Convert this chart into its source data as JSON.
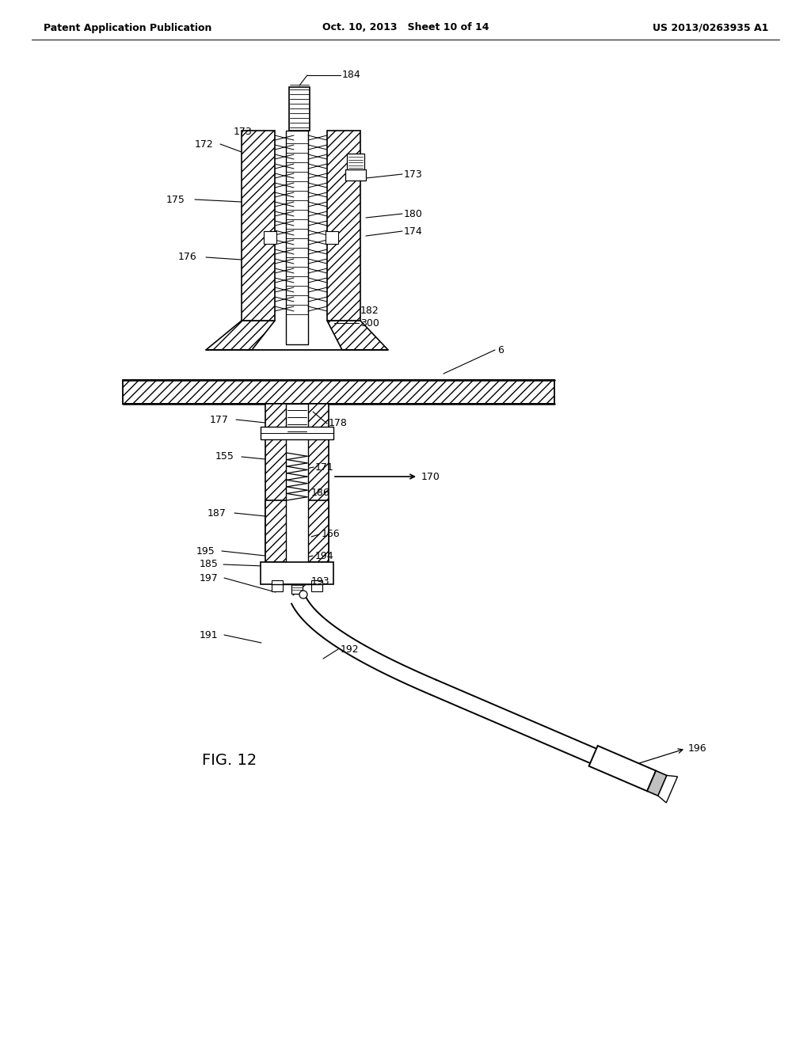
{
  "header_left": "Patent Application Publication",
  "header_center": "Oct. 10, 2013   Sheet 10 of 14",
  "header_right": "US 2013/0263935 A1",
  "fig_label": "FIG. 12",
  "bg": "#ffffff",
  "lc": "#000000"
}
